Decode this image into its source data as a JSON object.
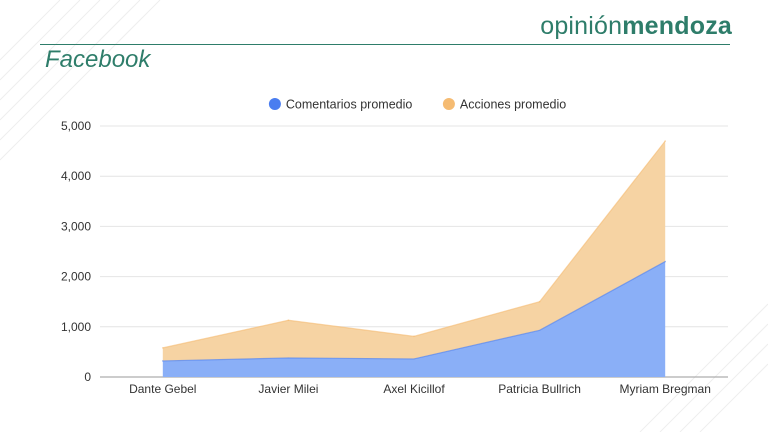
{
  "brand": {
    "light": "opinión",
    "bold": "mendoza",
    "color": "#2e7d6a"
  },
  "page_title": "Facebook",
  "chart_data": {
    "type": "area",
    "stacked": true,
    "categories": [
      "Dante Gebel",
      "Javier Milei",
      "Axel Kicillof",
      "Patricia Bullrich",
      "Myriam Bregman"
    ],
    "series": [
      {
        "name": "Comentarios promedio",
        "values": [
          320,
          380,
          360,
          930,
          2300
        ],
        "color": "#8aaff7",
        "legend_color": "#4a7df0"
      },
      {
        "name": "Acciones promedio",
        "values": [
          260,
          750,
          450,
          570,
          2400
        ],
        "color": "#f6d3a3",
        "legend_color": "#f5bb72"
      }
    ],
    "y_ticks": [
      "0",
      "1,000",
      "2,000",
      "3,000",
      "4,000",
      "5,000"
    ],
    "ylim": [
      0,
      5000
    ],
    "grid": true,
    "legend_position": "top-center"
  }
}
